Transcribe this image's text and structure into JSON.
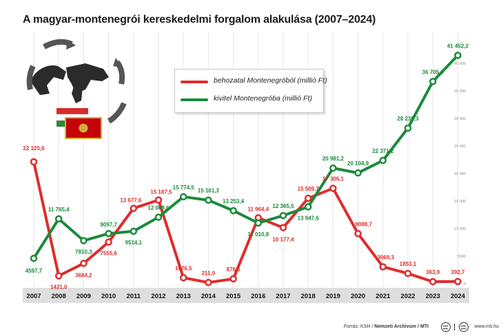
{
  "title": "A magyar-montenegrói kereskedelmi forgalom alakulása (2007–2024)",
  "legend": {
    "import_label": "behozatal Montenegróból (millió Ft)",
    "export_label": "kivitel Montenegróba (millió Ft)"
  },
  "footer": {
    "source_prefix": "Forrás:",
    "source_ksh": "KSH",
    "source_rest": "Nemzeti Archívum / MTI",
    "website": "www.mti.hu"
  },
  "colors": {
    "import": "#e02b2b",
    "export": "#1a8a3a",
    "axis_band": "#dedede",
    "grid": "#e6e6e6"
  },
  "chart_data": {
    "type": "line",
    "title": "A magyar-montenegrói kereskedelmi forgalom alakulása (2007–2024)",
    "categories": [
      "2007",
      "2008",
      "2009",
      "2010",
      "2011",
      "2012",
      "2013",
      "2014",
      "2015",
      "2016",
      "2017",
      "2018",
      "2019",
      "2020",
      "2021",
      "2022",
      "2023",
      "2024"
    ],
    "ylim": [
      0,
      45000
    ],
    "yticks": [
      0,
      5000,
      10000,
      15000,
      20000,
      25000,
      30000,
      35000,
      40000
    ],
    "ytick_labels": [
      "0",
      "5000",
      "10 000",
      "15 000",
      "20 000",
      "25 000",
      "30 000",
      "35 000",
      "40 000"
    ],
    "grid": true,
    "legend_position": "top-center",
    "series": [
      {
        "name": "behozatal Montenegróból (millió Ft)",
        "color": "#e02b2b",
        "values": [
          22125.6,
          1421.0,
          3684.2,
          7555.6,
          13677.6,
          15187.5,
          1076.5,
          211.0,
          878.5,
          11964.4,
          10177.4,
          15509.7,
          17306.1,
          9088.7,
          3069.3,
          1853.1,
          363.9,
          392.7
        ],
        "labels": [
          "22 125,6",
          "1421,0",
          "3684,2",
          "7555,6",
          "13 677,6",
          "15 187,5",
          "1076,5",
          "211,0",
          "878,5",
          "11 964,4",
          "10 177,4",
          "15 509,7",
          "17 306,1",
          "9088,7",
          "3069,3",
          "1853,1",
          "363,9",
          "392,7"
        ]
      },
      {
        "name": "kivitel Montenegróba (millió Ft)",
        "color": "#1a8a3a",
        "values": [
          4597.7,
          11765.4,
          7810.3,
          9097.7,
          9514.1,
          12068.6,
          15774.5,
          15161.3,
          13253.4,
          11010.8,
          12365.5,
          13947.6,
          20981.2,
          20104.9,
          22371.2,
          28239.3,
          36705.9,
          41452.2
        ],
        "labels": [
          "4597,7",
          "11 765,4",
          "7810,3",
          "9097,7",
          "9514,1",
          "12 068,6",
          "15 774,5",
          "15 161,3",
          "13 253,4",
          "11 010,8",
          "12 365,5",
          "13 947,6",
          "20 981,2",
          "20 104,9",
          "22 371,2",
          "28 239,3",
          "36 705,9",
          "41 452,2"
        ]
      }
    ]
  }
}
